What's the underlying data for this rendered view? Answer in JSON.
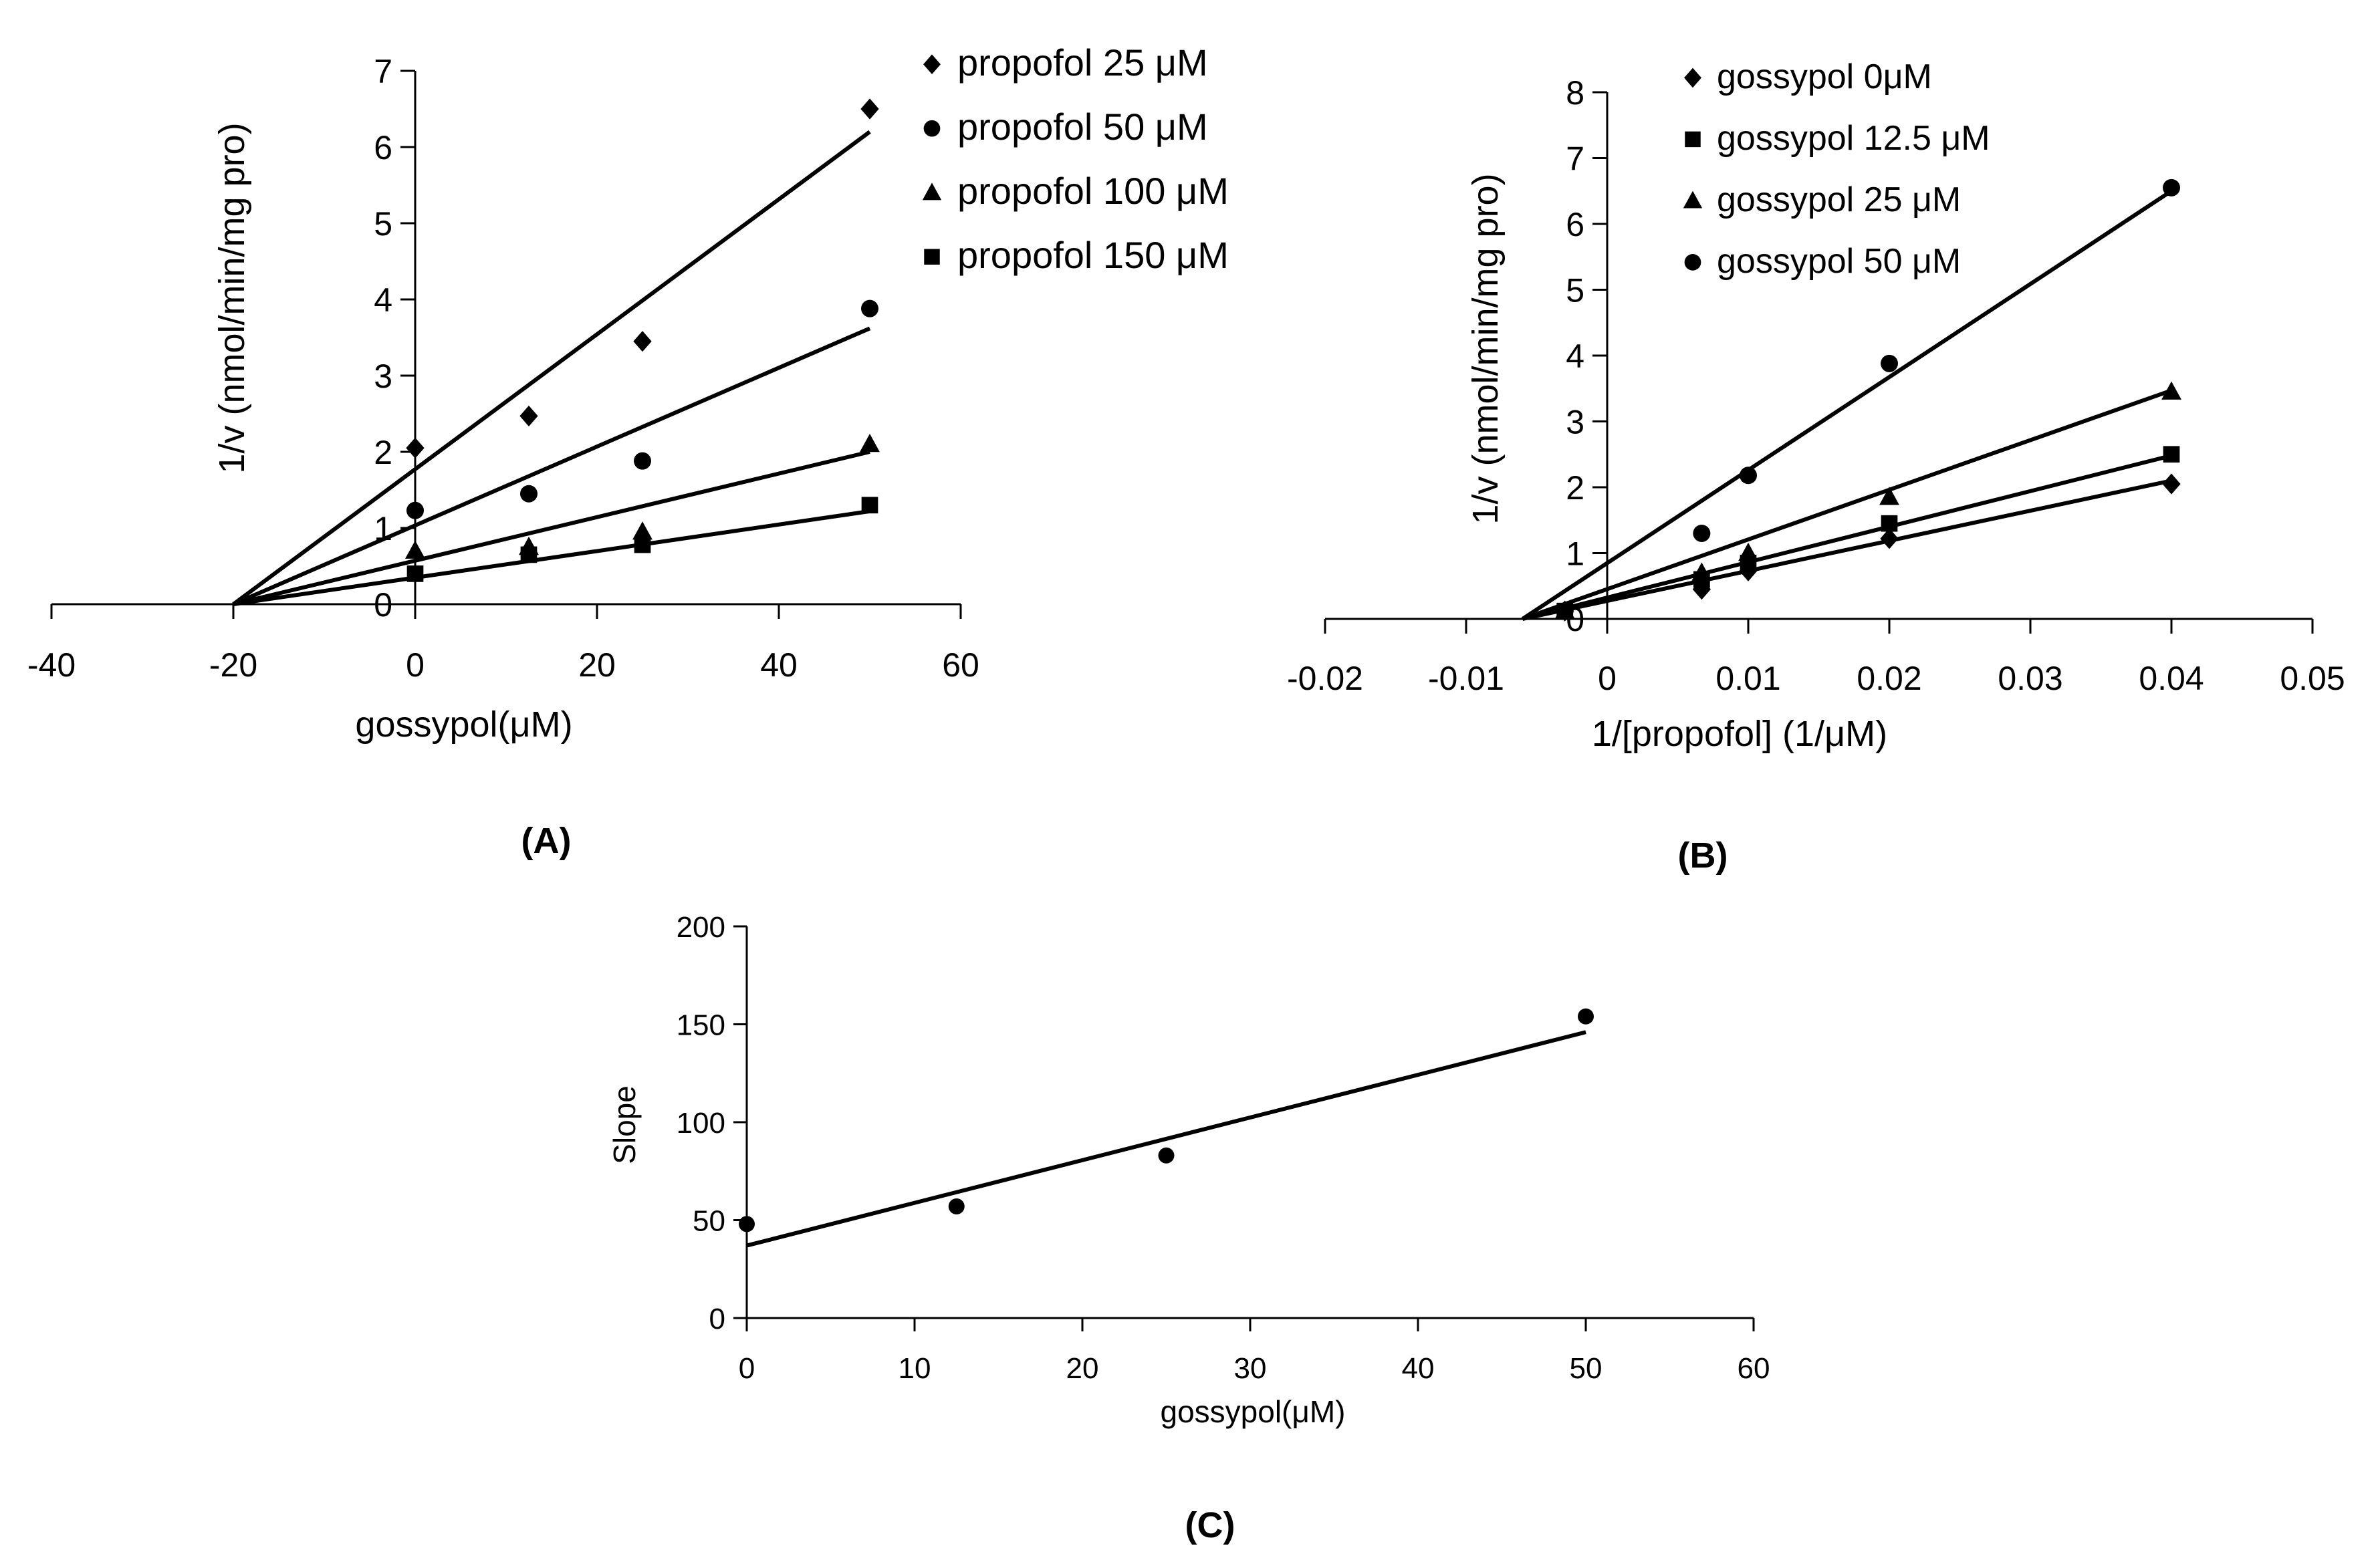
{
  "chart_data": [
    {
      "id": "A",
      "type": "scatter",
      "panel_label": "(A)",
      "xlabel": "gossypol(μM)",
      "ylabel": "1/v (nmol/min/mg pro)",
      "xlim": [
        -40,
        60
      ],
      "ylim": [
        0,
        7
      ],
      "xticks": [
        "-40",
        "-20",
        "0",
        "20",
        "40",
        "60"
      ],
      "yticks": [
        "0",
        "1",
        "2",
        "3",
        "4",
        "5",
        "6",
        "7"
      ],
      "legend_position": "top-right",
      "series": [
        {
          "name": "propofol 25 μM",
          "marker": "diamond",
          "x": [
            0,
            12.5,
            25,
            50
          ],
          "y": [
            2.05,
            2.47,
            3.45,
            6.5
          ],
          "fit": [
            [
              -20,
              0
            ],
            [
              50,
              6.2
            ]
          ]
        },
        {
          "name": "propofol 50 μM",
          "marker": "circle",
          "x": [
            0,
            12.5,
            25,
            50
          ],
          "y": [
            1.23,
            1.45,
            1.88,
            3.88
          ],
          "fit": [
            [
              -20,
              0
            ],
            [
              50,
              3.62
            ]
          ]
        },
        {
          "name": "propofol 100 μM",
          "marker": "triangle",
          "x": [
            0,
            12.5,
            25,
            50
          ],
          "y": [
            0.7,
            0.75,
            0.95,
            2.1
          ],
          "fit": [
            [
              -20,
              0
            ],
            [
              50,
              2.0
            ]
          ]
        },
        {
          "name": "propofol 150 μM",
          "marker": "square",
          "x": [
            0,
            12.5,
            25,
            50
          ],
          "y": [
            0.4,
            0.65,
            0.78,
            1.3
          ],
          "fit": [
            [
              -20,
              0
            ],
            [
              50,
              1.22
            ]
          ]
        }
      ]
    },
    {
      "id": "B",
      "type": "scatter",
      "panel_label": "(B)",
      "xlabel": "1/[propofol] (1/μM)",
      "ylabel": "1/v (nmol/min/mg pro)",
      "xlim": [
        -0.02,
        0.05
      ],
      "ylim": [
        0,
        8
      ],
      "xticks": [
        "-0.02",
        "-0.01",
        "0",
        "0.01",
        "0.02",
        "0.03",
        "0.04",
        "0.05"
      ],
      "yticks": [
        "0",
        "1",
        "2",
        "3",
        "4",
        "5",
        "6",
        "7",
        "8"
      ],
      "legend_position": "top-left",
      "series": [
        {
          "name": "gossypol 0μM",
          "marker": "diamond",
          "x": [
            -0.003,
            0.0067,
            0.01,
            0.02,
            0.04
          ],
          "y": [
            0.12,
            0.45,
            0.73,
            1.22,
            2.05
          ],
          "fit": [
            [
              -0.006,
              0
            ],
            [
              0.04,
              2.1
            ]
          ]
        },
        {
          "name": "gossypol 12.5 μM",
          "marker": "square",
          "x": [
            -0.003,
            0.0067,
            0.01,
            0.02,
            0.04
          ],
          "y": [
            0.12,
            0.6,
            0.85,
            1.45,
            2.5
          ],
          "fit": [
            [
              -0.006,
              0
            ],
            [
              0.04,
              2.48
            ]
          ]
        },
        {
          "name": "gossypol 25 μM",
          "marker": "triangle",
          "x": [
            -0.003,
            0.0067,
            0.01,
            0.02,
            0.04
          ],
          "y": [
            0.12,
            0.7,
            1.0,
            1.85,
            3.45
          ],
          "fit": [
            [
              -0.006,
              0
            ],
            [
              0.04,
              3.47
            ]
          ]
        },
        {
          "name": "gossypol 50 μM",
          "marker": "circle",
          "x": [
            -0.003,
            0.0067,
            0.01,
            0.02,
            0.04
          ],
          "y": [
            0.12,
            1.3,
            2.18,
            3.88,
            6.55
          ],
          "fit": [
            [
              -0.006,
              0
            ],
            [
              0.04,
              6.5
            ]
          ]
        }
      ]
    },
    {
      "id": "C",
      "type": "scatter",
      "panel_label": "(C)",
      "xlabel": "gossypol(μM)",
      "ylabel": "Slope",
      "xlim": [
        0,
        60
      ],
      "ylim": [
        0,
        200
      ],
      "xticks": [
        "0",
        "10",
        "20",
        "30",
        "40",
        "50",
        "60"
      ],
      "yticks": [
        "0",
        "50",
        "100",
        "150",
        "200"
      ],
      "series": [
        {
          "name": "slope",
          "marker": "circle",
          "x": [
            0,
            12.5,
            25,
            50
          ],
          "y": [
            48,
            57,
            83,
            154
          ],
          "fit": [
            [
              0,
              37
            ],
            [
              50,
              146
            ]
          ]
        }
      ]
    }
  ]
}
